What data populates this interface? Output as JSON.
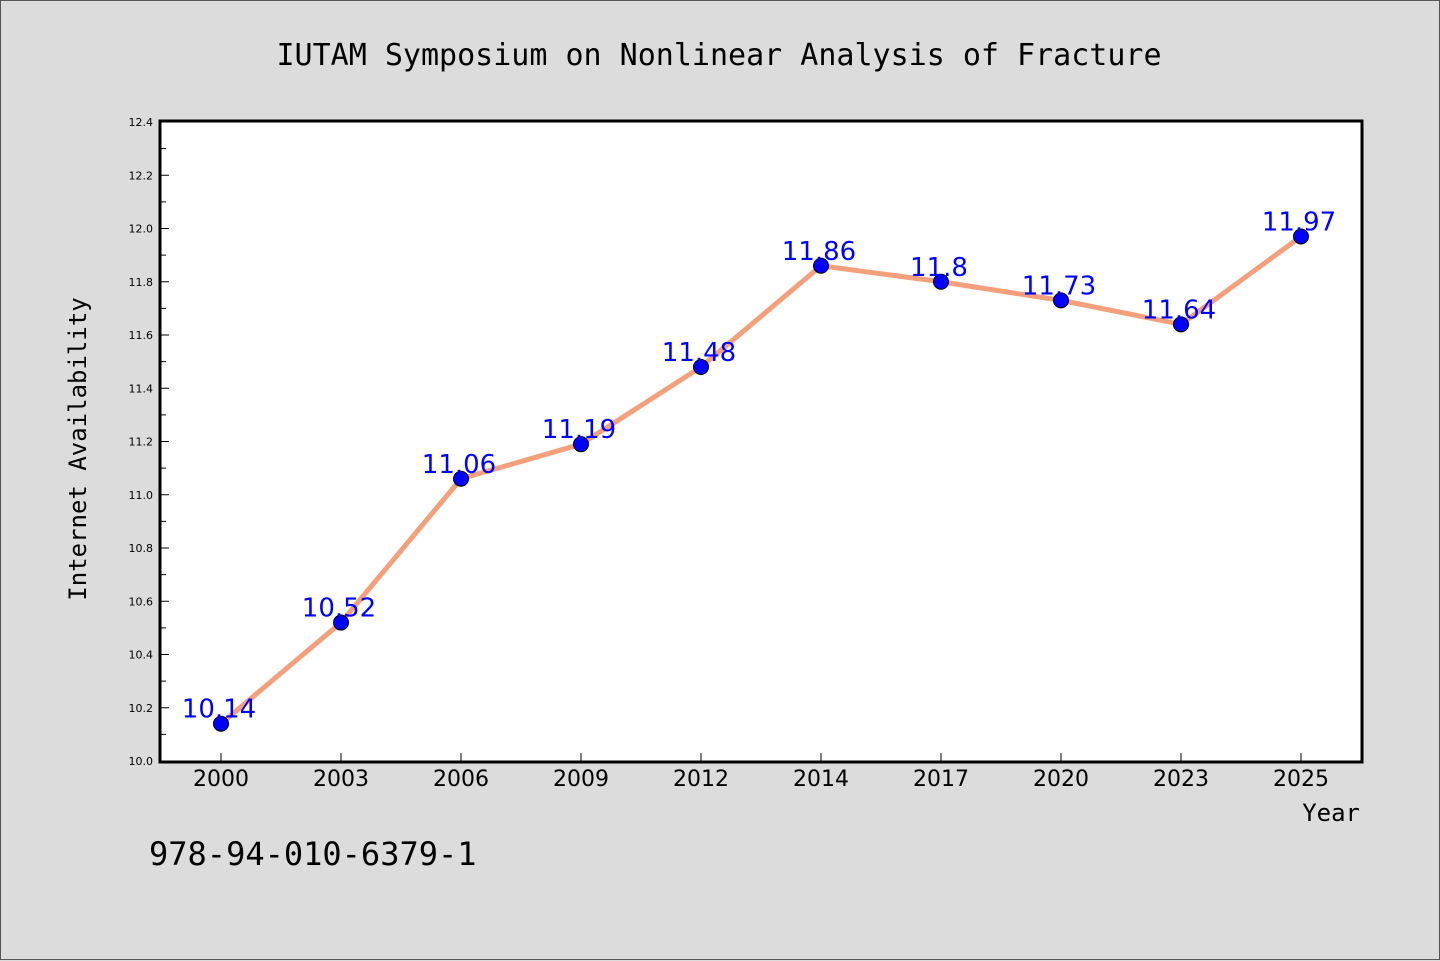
{
  "chart_data": {
    "type": "line",
    "title": "IUTAM Symposium on Nonlinear Analysis of Fracture",
    "xlabel": "Year",
    "ylabel": "Internet Availability",
    "categories": [
      "2000",
      "2003",
      "2006",
      "2009",
      "2012",
      "2014",
      "2017",
      "2020",
      "2023",
      "2025"
    ],
    "series": [
      {
        "values": [
          10.14,
          10.52,
          11.06,
          11.19,
          11.48,
          11.86,
          11.8,
          11.73,
          11.64,
          11.97
        ],
        "line_color": "#f4a07c",
        "marker_color": "#0000ff"
      }
    ],
    "ylim": [
      10.0,
      12.4
    ],
    "yticks": [
      "10.0",
      "10.2",
      "10.4",
      "10.6",
      "10.8",
      "11.0",
      "11.2",
      "11.4",
      "11.6",
      "11.8",
      "12.0",
      "12.2",
      "12.4"
    ],
    "data_labels": [
      "10.14",
      "10.52",
      "11.06",
      "11.19",
      "11.48",
      "11.86",
      "11.8",
      "11.73",
      "11.64",
      "11.97"
    ],
    "grid": false,
    "legend": "none"
  },
  "footnote": "978-94-010-6379-1",
  "colors": {
    "background": "#dcdcdc",
    "plot_background": "#ffffff",
    "line": "#f4a07c",
    "marker": "#0000ff",
    "data_label": "#0000ff"
  }
}
